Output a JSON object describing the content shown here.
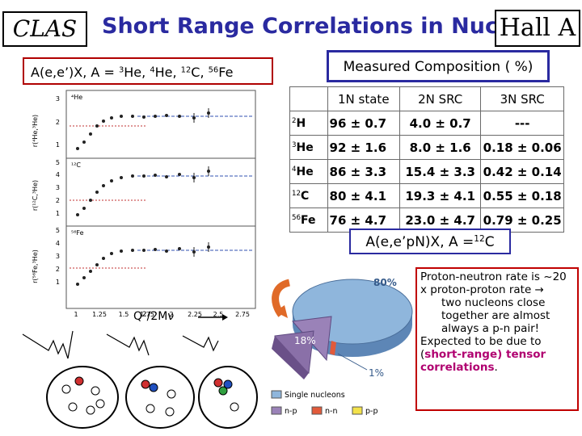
{
  "header": {
    "left_logo": "CLAS",
    "title": "Short Range Correlations in Nuclei",
    "right_logo": "Hall A"
  },
  "subtitle": {
    "prefix": "A(e,e’)X, A = ",
    "n1": "3",
    "e1": "He, ",
    "n2": "4",
    "e2": "He, ",
    "n3": "12",
    "e3": "C, ",
    "n4": "56",
    "e4": "Fe"
  },
  "composition": {
    "heading": "Measured Composition ( %)",
    "columns": [
      "",
      "1N state",
      "2N SRC",
      "3N SRC"
    ],
    "rows": [
      {
        "mass": "2",
        "sym": "H",
        "n1": "96 ± 0.7",
        "n2": "4.0 ± 0.7",
        "n3": "---"
      },
      {
        "mass": "3",
        "sym": "He",
        "n1": "92 ± 1.6",
        "n2": "8.0 ± 1.6",
        "n3": "0.18 ± 0.06"
      },
      {
        "mass": "4",
        "sym": "He",
        "n1": "86 ± 3.3",
        "n2": "15.4 ± 3.3",
        "n3": "0.42 ± 0.14"
      },
      {
        "mass": "12",
        "sym": "C",
        "n1": "80 ± 4.1",
        "n2": "19.3 ± 4.1",
        "n3": "0.55 ± 0.18"
      },
      {
        "mass": "56",
        "sym": "Fe",
        "n1": "76 ± 4.7",
        "n2": "23.0 ± 4.7",
        "n3": "0.79 ± 0.25"
      }
    ]
  },
  "ratio_plot": {
    "x_ticks": [
      "1",
      "1.25",
      "1.5",
      "1.75",
      "2",
      "2.25",
      "2.5",
      "2.75"
    ],
    "x_axis_label": "Q²/2Mν",
    "panels": [
      {
        "label": "⁴He",
        "ylabel": "r(⁴He,³He)",
        "y_ticks": [
          "1",
          "2",
          "3"
        ]
      },
      {
        "label": "¹²C",
        "ylabel": "r(¹²C,³He)",
        "y_ticks": [
          "1",
          "2",
          "3",
          "4",
          "5"
        ]
      },
      {
        "label": "⁵⁶Fe",
        "ylabel": "r(⁵⁶Fe,³He)",
        "y_ticks": [
          "1",
          "2",
          "3",
          "4",
          "5"
        ]
      }
    ]
  },
  "eep_box": {
    "prefix": "A(e,e’p",
    "mid": "N)X, A =",
    "mass": "12",
    "sym": "C"
  },
  "pie": {
    "labels": {
      "big": "80%",
      "mid": "18%",
      "small": "1%"
    },
    "legend": [
      "Single nucleons",
      "n-p",
      "n-n",
      "p-p"
    ],
    "colors": {
      "single": "#8fb6dc",
      "np": "#9a82b8",
      "nn": "#e25a3a",
      "pp": "#f3e24a"
    }
  },
  "note": {
    "line1": "Proton-neutron rate is ~20 x proton-proton rate →",
    "line2": "two nucleons close together are almost always a p-n pair!",
    "line3_prefix": "Expected to be due to (",
    "line3_highlight": "short-range) tensor correlations",
    "line3_suffix": "."
  }
}
